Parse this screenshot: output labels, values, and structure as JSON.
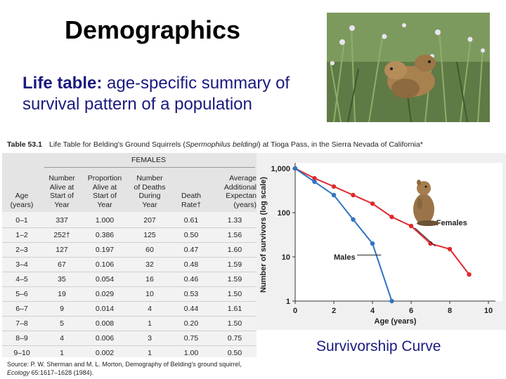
{
  "slide": {
    "title": "Demographics",
    "subtitle_bold": "Life table:",
    "subtitle_rest": " age-specific summary of survival pattern of a population",
    "curve_label": "Survivorship Curve"
  },
  "table": {
    "caption_num": "Table 53.1",
    "caption_pre": "Life Table for Belding's Ground Squirrels (",
    "caption_species": "Spermophilus beldingi",
    "caption_post": ") at Tioga Pass, in the Sierra Nevada of California*",
    "group_header": "FEMALES",
    "headers": [
      "Age\n(years)",
      "Number\nAlive at\nStart of\nYear",
      "Proportion\nAlive at\nStart of\nYear",
      "Number\nof Deaths\nDuring\nYear",
      "Death\nRate†",
      "Average\nAdditional\nExpectan\n(years)"
    ],
    "rows": [
      [
        "0–1",
        "337",
        "1.000",
        "207",
        "0.61",
        "1.33"
      ],
      [
        "1–2",
        "252†",
        "0.386",
        "125",
        "0.50",
        "1.56"
      ],
      [
        "2–3",
        "127",
        "0.197",
        "60",
        "0.47",
        "1.60"
      ],
      [
        "3–4",
        "67",
        "0.106",
        "32",
        "0.48",
        "1.59"
      ],
      [
        "4–5",
        "35",
        "0.054",
        "16",
        "0.46",
        "1.59"
      ],
      [
        "5–6",
        "19",
        "0.029",
        "10",
        "0.53",
        "1.50"
      ],
      [
        "6–7",
        "9",
        "0.014",
        "4",
        "0.44",
        "1.61"
      ],
      [
        "7–8",
        "5",
        "0.008",
        "1",
        "0.20",
        "1.50"
      ],
      [
        "8–9",
        "4",
        "0.006",
        "3",
        "0.75",
        "0.75"
      ],
      [
        "9–10",
        "1",
        "0.002",
        "1",
        "1.00",
        "0.50"
      ]
    ],
    "source_line1": "Source: P. W. Sherman and M. L. Morton, Demography of Belding's ground squirrel,",
    "source_line2_italic": "Ecology",
    "source_line2_rest": " 65:1617–1628 (1984)."
  },
  "colors": {
    "title": "#000000",
    "subtitle": "#1a1a80",
    "table_bg": "#f2f2f2",
    "table_header_bg": "#e4e4e4",
    "grid": "#d0d0d0",
    "females": "#e0292e",
    "males": "#2f73c2",
    "plot_bg": "#ffffff",
    "chart_panel": "#f0f0f0"
  },
  "chart_data": {
    "type": "line",
    "xlabel": "Age (years)",
    "ylabel": "Number of survivors (log scale)",
    "xlim": [
      0,
      10
    ],
    "ylim": [
      1,
      1000
    ],
    "yscale": "log",
    "x_ticks": [
      "0",
      "2",
      "4",
      "6",
      "8",
      "10"
    ],
    "y_ticks": [
      "1",
      "10",
      "100",
      "1,000"
    ],
    "series": [
      {
        "name": "Females",
        "x": [
          0,
          1,
          2,
          3,
          4,
          5,
          6,
          7,
          8,
          9
        ],
        "y": [
          1000,
          600,
          390,
          250,
          160,
          80,
          50,
          20,
          15,
          4
        ],
        "color": "#e0292e"
      },
      {
        "name": "Males",
        "x": [
          0,
          1,
          2,
          3,
          4,
          5
        ],
        "y": [
          1000,
          500,
          250,
          70,
          20,
          1
        ],
        "color": "#2f73c2"
      }
    ]
  }
}
